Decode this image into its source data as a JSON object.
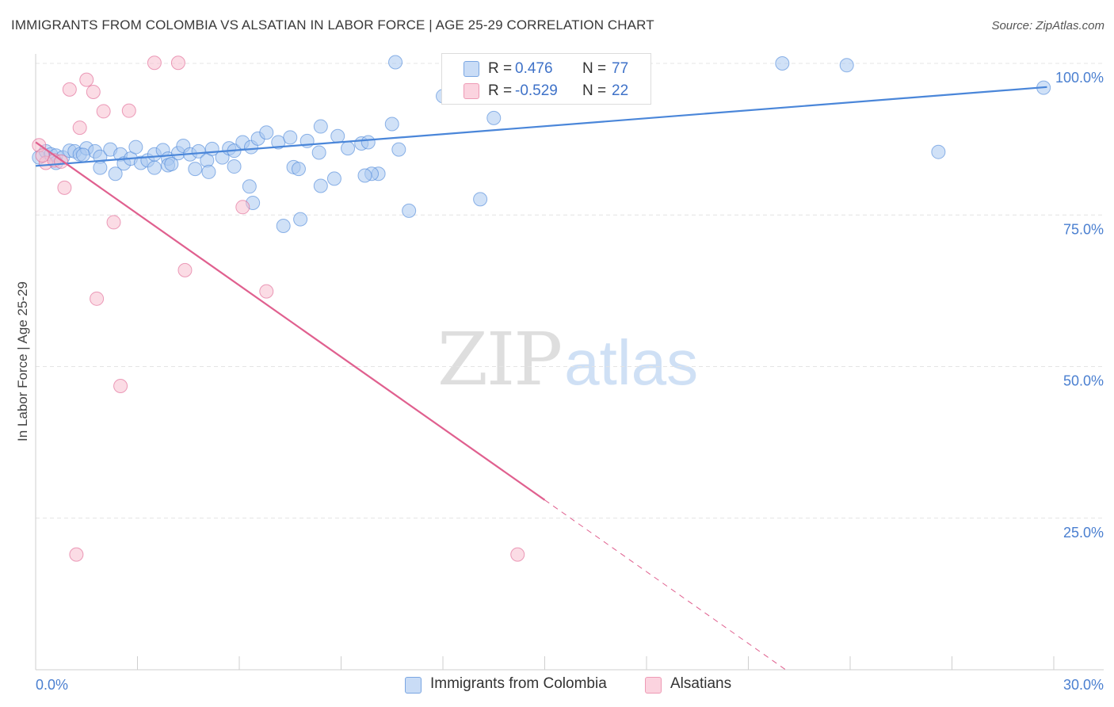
{
  "header": {
    "title": "IMMIGRANTS FROM COLOMBIA VS ALSATIAN IN LABOR FORCE | AGE 25-29 CORRELATION CHART",
    "source": "Source: ZipAtlas.com"
  },
  "watermark": {
    "zip": "ZIP",
    "atlas": "atlas"
  },
  "legend_top": {
    "rows": [
      {
        "r_label": "R =",
        "r_value": "0.476",
        "n_label": "N =",
        "n_value": "77",
        "color": "#a9c8f0"
      },
      {
        "r_label": "R =",
        "r_value": "-0.529",
        "n_label": "N =",
        "n_value": "22",
        "color": "#f7bfd0"
      }
    ]
  },
  "legend_bottom": [
    {
      "label": "Immigrants from Colombia",
      "color": "#a9c8f0"
    },
    {
      "label": "Alsatians",
      "color": "#f7bfd0"
    }
  ],
  "chart_data": {
    "type": "scatter",
    "title": "IMMIGRANTS FROM COLOMBIA VS ALSATIAN IN LABOR FORCE | AGE 25-29 CORRELATION CHART",
    "xlabel": "",
    "ylabel": "In Labor Force | Age 25-29",
    "xlim": [
      0,
      30
    ],
    "ylim": [
      0,
      101
    ],
    "x_tick_labels": [
      "0.0%",
      "30.0%"
    ],
    "y_tick_labels": [
      {
        "value": 100,
        "label": "100.0%"
      },
      {
        "value": 75,
        "label": "75.0%"
      },
      {
        "value": 50,
        "label": "50.0%"
      },
      {
        "value": 25,
        "label": "25.0%"
      }
    ],
    "grid": true,
    "legend_position": "bottom",
    "series": [
      {
        "name": "Immigrants from Colombia",
        "color": "#4a86d9",
        "fill": "#a9c8f0",
        "points": [
          [
            0.1,
            84.5
          ],
          [
            0.3,
            85.5
          ],
          [
            0.45,
            85
          ],
          [
            0.6,
            84.8
          ],
          [
            0.8,
            84.5
          ],
          [
            1.0,
            85.6
          ],
          [
            1.15,
            85.5
          ],
          [
            1.3,
            85.0
          ],
          [
            1.5,
            86.0
          ],
          [
            1.75,
            85.5
          ],
          [
            1.9,
            84.6
          ],
          [
            1.4,
            84.9
          ],
          [
            2.2,
            85.8
          ],
          [
            2.5,
            85.0
          ],
          [
            2.6,
            83.5
          ],
          [
            2.8,
            84.3
          ],
          [
            2.95,
            86.2
          ],
          [
            3.1,
            83.6
          ],
          [
            3.3,
            84.0
          ],
          [
            3.5,
            85.0
          ],
          [
            3.75,
            85.7
          ],
          [
            3.9,
            84.3
          ],
          [
            4.2,
            85.2
          ],
          [
            4.35,
            86.4
          ],
          [
            4.55,
            85.0
          ],
          [
            4.8,
            85.5
          ],
          [
            5.05,
            84.0
          ],
          [
            5.2,
            85.9
          ],
          [
            5.5,
            84.5
          ],
          [
            5.7,
            86.0
          ],
          [
            5.85,
            85.6
          ],
          [
            6.1,
            87.0
          ],
          [
            6.35,
            86.2
          ],
          [
            6.55,
            87.6
          ],
          [
            6.8,
            88.6
          ],
          [
            7.15,
            87.0
          ],
          [
            7.5,
            87.8
          ],
          [
            8.0,
            87.2
          ],
          [
            8.35,
            85.3
          ],
          [
            8.9,
            88.0
          ],
          [
            9.2,
            86.0
          ],
          [
            9.6,
            86.8
          ],
          [
            9.8,
            87.0
          ],
          [
            10.7,
            85.8
          ],
          [
            10.6,
            100.2
          ],
          [
            13.1,
            77.6
          ],
          [
            16.5,
            99.6
          ],
          [
            22.0,
            100.0
          ],
          [
            23.9,
            99.7
          ],
          [
            29.7,
            96.0
          ],
          [
            26.6,
            85.4
          ],
          [
            13.5,
            91.0
          ],
          [
            10.1,
            81.8
          ],
          [
            9.9,
            81.8
          ],
          [
            8.4,
            79.8
          ],
          [
            8.8,
            81.0
          ],
          [
            7.6,
            82.9
          ],
          [
            7.75,
            82.6
          ],
          [
            8.4,
            89.6
          ],
          [
            10.5,
            90.0
          ],
          [
            11.0,
            75.7
          ],
          [
            7.3,
            73.2
          ],
          [
            7.8,
            74.3
          ],
          [
            6.4,
            77.0
          ],
          [
            6.3,
            79.7
          ],
          [
            5.85,
            83.0
          ],
          [
            5.1,
            82.1
          ],
          [
            4.7,
            82.6
          ],
          [
            3.9,
            83.2
          ],
          [
            4.0,
            83.4
          ],
          [
            3.5,
            82.8
          ],
          [
            2.35,
            81.8
          ],
          [
            1.9,
            82.8
          ],
          [
            0.6,
            83.6
          ],
          [
            9.7,
            81.5
          ],
          [
            12.0,
            94.6
          ],
          [
            17.7,
            98.2
          ]
        ]
      },
      {
        "name": "Alsatians",
        "color": "#e0608f",
        "fill": "#f7bfd0",
        "points": [
          [
            0.1,
            86.5
          ],
          [
            0.3,
            83.6
          ],
          [
            0.55,
            84.0
          ],
          [
            0.75,
            83.8
          ],
          [
            0.85,
            79.5
          ],
          [
            1.0,
            95.7
          ],
          [
            1.3,
            89.4
          ],
          [
            1.5,
            97.3
          ],
          [
            1.7,
            95.3
          ],
          [
            2.0,
            92.1
          ],
          [
            2.3,
            73.8
          ],
          [
            2.75,
            92.2
          ],
          [
            3.5,
            100.1
          ],
          [
            4.2,
            100.1
          ],
          [
            4.4,
            65.9
          ],
          [
            1.8,
            61.2
          ],
          [
            2.5,
            46.8
          ],
          [
            1.2,
            19.0
          ],
          [
            6.1,
            76.3
          ],
          [
            6.8,
            62.4
          ],
          [
            14.2,
            19.0
          ],
          [
            0.2,
            84.8
          ]
        ]
      }
    ],
    "trend_lines": [
      {
        "series": "Immigrants from Colombia",
        "x": [
          0,
          29.8
        ],
        "y": [
          83.1,
          96.1
        ],
        "style": "solid"
      },
      {
        "series": "Alsatians",
        "x": [
          0,
          15.0
        ],
        "y": [
          87.0,
          28.0
        ],
        "style": "solid"
      },
      {
        "series": "Alsatians",
        "x": [
          15.0,
          22.1
        ],
        "y": [
          28.0,
          0
        ],
        "style": "dashed"
      }
    ]
  }
}
